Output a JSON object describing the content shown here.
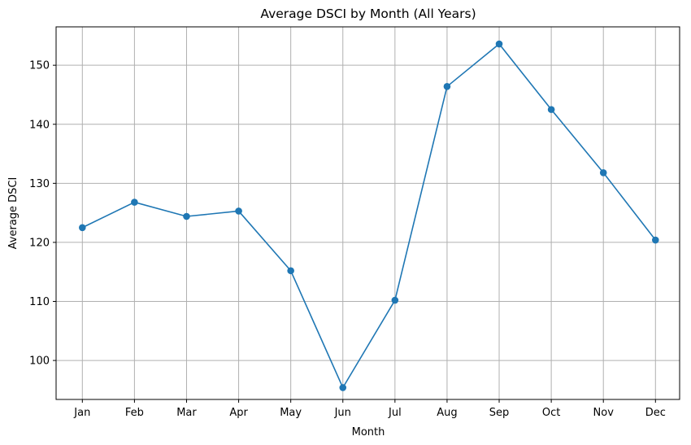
{
  "colors": {
    "series": "#1f77b4",
    "grid": "#b0b0b0",
    "axis": "#000000"
  },
  "chart_data": {
    "type": "line",
    "title": "Average DSCI by Month (All Years)",
    "xlabel": "Month",
    "ylabel": "Average DSCI",
    "categories": [
      "Jan",
      "Feb",
      "Mar",
      "Apr",
      "May",
      "Jun",
      "Jul",
      "Aug",
      "Sep",
      "Oct",
      "Nov",
      "Dec"
    ],
    "series": [
      {
        "values": [
          122.5,
          126.8,
          124.4,
          125.3,
          115.2,
          95.4,
          110.2,
          146.4,
          153.6,
          142.5,
          131.8,
          120.4
        ],
        "marker": "circle"
      }
    ],
    "ylim": [
      93.4,
      156.5
    ],
    "yticks": [
      100,
      110,
      120,
      130,
      140,
      150
    ],
    "grid": true
  }
}
